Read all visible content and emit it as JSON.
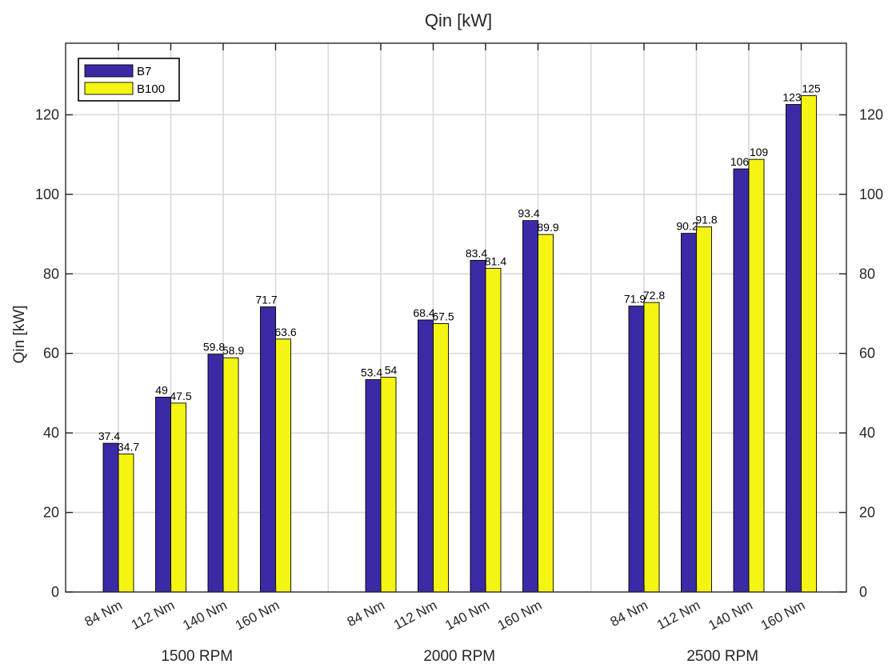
{
  "chart_data": {
    "type": "bar",
    "title": "Qin [kW]",
    "xlabel": "",
    "ylabel": "Qin [kW]",
    "ylim": [
      0,
      138
    ],
    "yticks": [
      0,
      20,
      40,
      60,
      80,
      100,
      120
    ],
    "grid": true,
    "legend_position": "top-left",
    "groups": [
      {
        "label": "1500 RPM",
        "categories": [
          "84 Nm",
          "112 Nm",
          "140 Nm",
          "160 Nm"
        ]
      },
      {
        "label": "2000 RPM",
        "categories": [
          "84 Nm",
          "112 Nm",
          "140 Nm",
          "160 Nm"
        ]
      },
      {
        "label": "2500 RPM",
        "categories": [
          "84 Nm",
          "112 Nm",
          "140 Nm",
          "160 Nm"
        ]
      }
    ],
    "series": [
      {
        "name": "B7",
        "color": "#3b2aa6",
        "values": [
          37.4,
          49,
          59.8,
          71.7,
          53.4,
          68.4,
          83.4,
          93.4,
          71.9,
          90.2,
          106.4,
          122.6
        ],
        "labels": [
          "37.4",
          "49",
          "59.8",
          "71.7",
          "53.4",
          "68.4",
          "83.4",
          "93.4",
          "71.9",
          "90.2",
          "106",
          "123"
        ]
      },
      {
        "name": "B100",
        "color": "#f5f513",
        "values": [
          34.7,
          47.5,
          58.9,
          63.6,
          54,
          67.5,
          81.4,
          89.9,
          72.8,
          91.8,
          108.8,
          124.8
        ],
        "labels": [
          "34.7",
          "47.5",
          "58.9",
          "63.6",
          "54",
          "67.5",
          "81.4",
          "89.9",
          "72.8",
          "91.8",
          "109",
          "125"
        ]
      }
    ]
  }
}
